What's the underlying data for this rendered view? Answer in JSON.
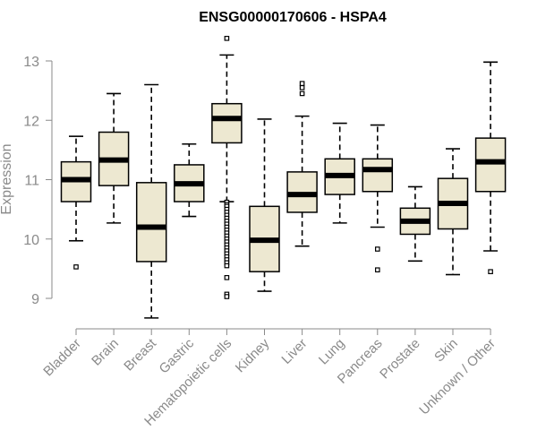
{
  "chart_data": {
    "type": "box",
    "title": "ENSG00000170606 - HSPA4",
    "ylabel": "Expression",
    "xlabel": "",
    "ylim": [
      8.5,
      13.5
    ],
    "yticks": [
      9,
      10,
      11,
      12,
      13
    ],
    "grid": false,
    "box_fill": "#ede8d1",
    "box_stroke": "#000000",
    "median_color": "#000000",
    "categories": [
      "Bladder",
      "Brain",
      "Breast",
      "Gastric",
      "Hematopoietic cells",
      "Kidney",
      "Liver",
      "Lung",
      "Pancreas",
      "Prostate",
      "Skin",
      "Unknown / Other"
    ],
    "boxes": [
      {
        "category": "Bladder",
        "whisker_low": 9.97,
        "q1": 10.63,
        "median": 11.0,
        "q3": 11.3,
        "whisker_high": 11.73,
        "outliers": [
          9.53
        ]
      },
      {
        "category": "Brain",
        "whisker_low": 10.27,
        "q1": 10.9,
        "median": 11.33,
        "q3": 11.8,
        "whisker_high": 12.45,
        "outliers": []
      },
      {
        "category": "Breast",
        "whisker_low": 8.67,
        "q1": 9.62,
        "median": 10.2,
        "q3": 10.95,
        "whisker_high": 12.6,
        "outliers": []
      },
      {
        "category": "Gastric",
        "whisker_low": 10.38,
        "q1": 10.63,
        "median": 10.93,
        "q3": 11.25,
        "whisker_high": 11.6,
        "outliers": []
      },
      {
        "category": "Hematopoietic cells",
        "whisker_low": 10.63,
        "q1": 11.62,
        "median": 12.03,
        "q3": 12.28,
        "whisker_high": 13.1,
        "outliers": [
          13.38,
          10.62,
          10.58,
          10.55,
          10.5,
          10.45,
          10.4,
          10.35,
          10.3,
          10.25,
          10.2,
          10.15,
          10.1,
          10.05,
          10.0,
          9.95,
          9.9,
          9.85,
          9.8,
          9.75,
          9.7,
          9.65,
          9.6,
          9.55,
          9.35,
          9.07,
          9.03
        ]
      },
      {
        "category": "Kidney",
        "whisker_low": 9.12,
        "q1": 9.45,
        "median": 9.98,
        "q3": 10.55,
        "whisker_high": 12.02,
        "outliers": []
      },
      {
        "category": "Liver",
        "whisker_low": 9.88,
        "q1": 10.45,
        "median": 10.75,
        "q3": 11.13,
        "whisker_high": 12.07,
        "outliers": [
          12.45,
          12.55,
          12.62
        ]
      },
      {
        "category": "Lung",
        "whisker_low": 10.27,
        "q1": 10.75,
        "median": 11.07,
        "q3": 11.35,
        "whisker_high": 11.95,
        "outliers": []
      },
      {
        "category": "Pancreas",
        "whisker_low": 10.2,
        "q1": 10.8,
        "median": 11.17,
        "q3": 11.35,
        "whisker_high": 11.92,
        "outliers": [
          9.83,
          9.48
        ]
      },
      {
        "category": "Prostate",
        "whisker_low": 9.63,
        "q1": 10.08,
        "median": 10.3,
        "q3": 10.52,
        "whisker_high": 10.88,
        "outliers": []
      },
      {
        "category": "Skin",
        "whisker_low": 9.4,
        "q1": 10.17,
        "median": 10.6,
        "q3": 11.02,
        "whisker_high": 11.52,
        "outliers": []
      },
      {
        "category": "Unknown / Other",
        "whisker_low": 9.8,
        "q1": 10.8,
        "median": 11.3,
        "q3": 11.7,
        "whisker_high": 12.98,
        "outliers": [
          9.45
        ]
      }
    ]
  }
}
